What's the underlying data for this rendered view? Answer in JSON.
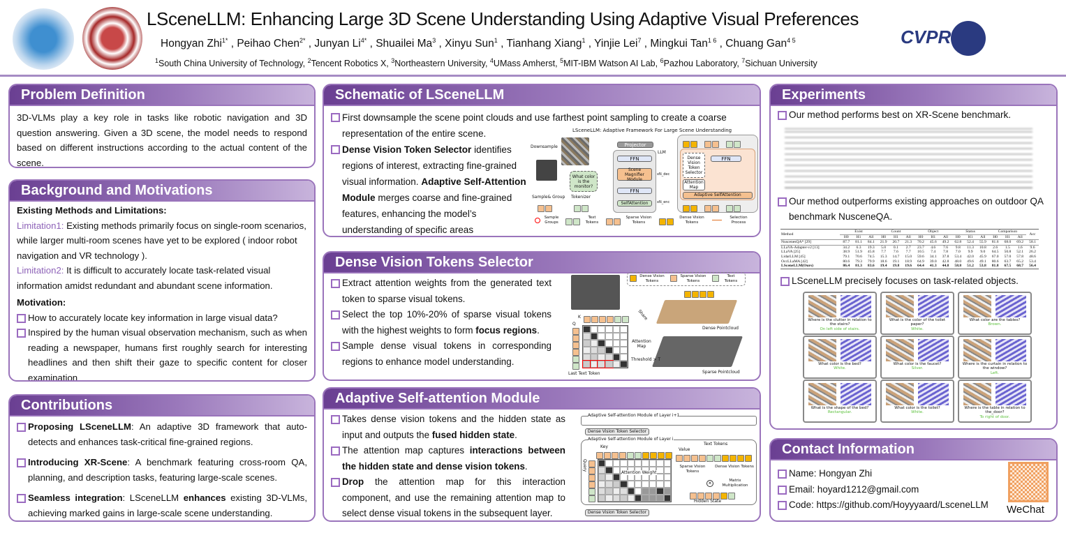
{
  "header": {
    "title": "LSceneLLM: Enhancing Large 3D Scene Understanding Using Adaptive Visual Preferences",
    "authors": [
      [
        "Hongyan Zhi",
        "1*"
      ],
      [
        "Peihao Chen",
        "2*"
      ],
      [
        "Junyan Li",
        "4*"
      ],
      [
        "Shuailei Ma",
        "3"
      ],
      [
        "Xinyu Sun",
        "1"
      ],
      [
        "Tianhang Xiang",
        "1"
      ],
      [
        "Yinjie Lei",
        "7"
      ],
      [
        "Mingkui Tan",
        "1 6"
      ],
      [
        "Chuang Gan",
        "4 5"
      ]
    ],
    "affiliations": [
      [
        "1",
        "South China University of Technology"
      ],
      [
        "2",
        "Tencent Robotics X"
      ],
      [
        "3",
        "Northeastern University"
      ],
      [
        "4",
        "UMass Amherst"
      ],
      [
        "5",
        "MIT-IBM Watson AI Lab"
      ],
      [
        "6",
        "Pazhou Laboratory"
      ],
      [
        "7",
        "Sichuan University"
      ]
    ],
    "conference_logo": "CVPR Nashville June 11-15, 2025",
    "colors": {
      "accent": "#9a74bb",
      "header_dark": "#6a3f92",
      "limitation": "#8e63b8",
      "answer": "#5cc13c"
    }
  },
  "problem": {
    "title": "Problem Definition",
    "text": "3D-VLMs play a key role in tasks like robotic navigation and 3D question answering. Given a 3D scene, the model needs to respond based on different instructions according to the actual content of the scene."
  },
  "background": {
    "title": "Background and Motivations",
    "subtitle": "Existing Methods and Limitations:",
    "lim1_label": "Limitation1:",
    "lim1": " Existing methods primarily focus on single-room scenarios, while larger multi-room scenes have yet to be explored ( indoor robot navigation and VR technology ).",
    "lim2_label": "Limitation2:",
    "lim2": " It is difficult to accurately locate task-related visual information amidst redundant and abundant scene information.",
    "motivation_label": "Motivation:",
    "bullets": [
      "How to accurately locate key information in large  visual data?",
      "Inspired by the human visual observation mechanism, such as when reading a newspaper, humans first roughly search for interesting headlines and then shift their gaze to specific content for closer examination"
    ]
  },
  "contributions": {
    "title": "Contributions",
    "bullets": [
      [
        [
          "Proposing LSceneLLM",
          1
        ],
        [
          ": An adaptive 3D framework that auto-detects and enhances task-critical fine-grained regions.",
          0
        ]
      ],
      [
        [
          "Introducing XR-Scene",
          1
        ],
        [
          ": A benchmark featuring cross-room QA, planning, and description tasks, featuring large-scale scenes.",
          0
        ]
      ],
      [
        [
          "Seamless integration",
          1
        ],
        [
          ": LSceneLLM ",
          0
        ],
        [
          "enhances",
          1
        ],
        [
          " existing 3D-VLMs, achieving marked gains in large-scale scene understanding.",
          0
        ]
      ]
    ]
  },
  "schematic": {
    "title": "Schematic of LSceneLLM",
    "bullets": [
      [
        [
          "First downsample the scene point clouds and use farthest point sampling to create a coarse representation of the entire scene.",
          0
        ]
      ],
      [
        [
          " Dense Vision Token Selector",
          1
        ],
        [
          " identifies regions of interest, extracting fine-grained visual information.  ",
          0
        ],
        [
          "Adaptive Self-Attention Module",
          1
        ],
        [
          " merges coarse and fine-grained features, enhancing the model’s  understanding of specific areas",
          0
        ]
      ]
    ],
    "figure": {
      "title": "LSceneLLM: Adaptive Framework For Large Scene Understanding",
      "downsample": "Downsample",
      "sample_group": "Sample& Group",
      "tokenizer": "Tokenizer",
      "question": "What color is the monitor?",
      "projector": "Projector",
      "llm": "LLM",
      "ffn": "FFN",
      "scene_magnifier": "Scene Magnifier Module",
      "self_attention": "SelfAttention",
      "nx_dec": "xN_dec",
      "nx_enc": "xN_enc",
      "dvts": "Dense Vision Token Selector",
      "attention_map": "Attention Map",
      "adaptive_sa": "Adaptive SelfAttention",
      "legend": [
        "Sample Groups",
        "Text Tokens",
        "Sparse Vision Tokens",
        "Dense Vision Tokens",
        "Selection Process"
      ]
    }
  },
  "dense": {
    "title": "Dense Vision Tokens Selector",
    "bullets": [
      [
        [
          "Extract attention weights from the generated text token to sparse visual tokens.",
          0
        ]
      ],
      [
        [
          "Select the top 10%-20% of sparse visual tokens with the highest weights to form ",
          0
        ],
        [
          "focus regions",
          1
        ],
        [
          ".",
          0
        ]
      ],
      [
        [
          "Sample dense visual tokens in corresponding regions to enhance model understanding.",
          0
        ]
      ]
    ],
    "figure": {
      "legend": [
        "Dense Vision Tokens",
        "Sparse Vision Tokens",
        "Text Tokens"
      ],
      "k": "K",
      "q": "Q",
      "attention_map": "Attention Map",
      "threshold": "Threshold > T",
      "last_text_token": "Last Text Token",
      "share": "Share",
      "dense_pc": "Dense Pointcloud",
      "sparse_pc": "Sparse Pointcloud"
    }
  },
  "adaptive": {
    "title": "Adaptive Self-attention Module",
    "bullets": [
      [
        [
          "Takes dense vision tokens and the hidden state as input and outputs the ",
          0
        ],
        [
          "fused hidden state",
          1
        ],
        [
          ".",
          0
        ]
      ],
      [
        [
          "The attention map captures ",
          0
        ],
        [
          "interactions between the hidden state and dense vision tokens",
          1
        ],
        [
          ".",
          0
        ]
      ],
      [
        [
          "Drop",
          1
        ],
        [
          " the attention map for this interaction component, and use the remaining attention map to select dense visual tokens in the subsequent layer.",
          0
        ]
      ]
    ],
    "figure": {
      "outer": "Adaptive Self-attention Module of Layer i+1",
      "inner": "Adaptive Self-attention Module of Layer i",
      "dvts": "Dense Vision Token Selector",
      "key": "Key",
      "query": "Query",
      "value": "Value",
      "text_tokens": "Text Tokens",
      "attention_weight": "Attention Weight",
      "sparse_vt": "Sparse Vision Tokens",
      "dense_vt": "Dense Vision Tokens",
      "matmul": "Matrix Multiplication",
      "hidden_state": "Hidden State"
    }
  },
  "experiments": {
    "title": "Experiments",
    "b1": "Our method performs best on XR-Scene benchmark.",
    "b2": "Our method outperforms existing approaches on outdoor QA benchmark NusceneQA.",
    "b3": "LSceneLLM precisely focuses on task-related objects.",
    "table2": {
      "groups": [
        "Exist",
        "Count",
        "Object",
        "Status",
        "Comparison"
      ],
      "sub": [
        "H0",
        "H1",
        "All"
      ],
      "method_header": "Method",
      "acc_header": "Acc",
      "rows": [
        [
          "NuscenesQA* [29]",
          "87.7",
          "81.1",
          "84.1",
          "21.9",
          "20.7",
          "21.3",
          "70.2",
          "45.6",
          "49.2",
          "62.8",
          "52.4",
          "55.9",
          "81.6",
          "68.0",
          "69.2",
          "58.1"
        ],
        [
          "LLaVA-Adapter-v2 [13]",
          "34.2",
          "6.3",
          "19.3",
          "5.0",
          "0.1",
          "2.7",
          "23.7",
          "4.6",
          "7.6",
          "9.8",
          "11.3",
          "10.8",
          "2.6",
          "1.5",
          "1.6",
          "9.6"
        ],
        [
          "LLaVA [25]",
          "38.9",
          "51.9",
          "45.8",
          "7.7",
          "7.6",
          "7.7",
          "10.5",
          "7.4",
          "7.8",
          "7.0",
          "9.9",
          "9.0",
          "64.5",
          "50.8",
          "52.1",
          "26.2"
        ],
        [
          "LidarLLM [45]",
          "79.1",
          "70.6",
          "74.5",
          "15.3",
          "14.7",
          "15.0",
          "59.6",
          "34.1",
          "37.8",
          "53.4",
          "42.0",
          "45.9",
          "67.0",
          "57.0",
          "57.8",
          "48.6"
        ],
        [
          "OccLLaMA [42]",
          "80.6",
          "79.3",
          "79.9",
          "18.6",
          "19.1",
          "18.9",
          "64.9",
          "39.0",
          "42.8",
          "48.0",
          "49.6",
          "49.1",
          "80.6",
          "63.7",
          "65.2",
          "53.4"
        ],
        [
          "LSceneLLM(Ours)",
          "86.4",
          "81.3",
          "83.6",
          "19.4",
          "19.8",
          "19.6",
          "64.4",
          "41.3",
          "44.8",
          "58.8",
          "51.2",
          "53.8",
          "81.8",
          "67.5",
          "68.7",
          "56.4"
        ]
      ]
    },
    "examples": [
      {
        "q": "Where is the clutter in relation to the stairs?",
        "a": "On left side of stairs."
      },
      {
        "q": "What is the color of the toilet paper?",
        "a": "White."
      },
      {
        "q": "What color are the tables?",
        "a": "Brown."
      },
      {
        "q": "What color is the bed?",
        "a": "White."
      },
      {
        "q": "What color is the faucet?",
        "a": "Silver."
      },
      {
        "q": "Where is the curtain in relation to the window?",
        "a": "Left."
      },
      {
        "q": "What is the shape of the bed?",
        "a": "Rectangular."
      },
      {
        "q": "What color is the toilet?",
        "a": "White."
      },
      {
        "q": "Where is the table in relation to the_door?",
        "a": "To right of door."
      }
    ]
  },
  "contact": {
    "title": "Contact Information",
    "name": "Name: Hongyan Zhi",
    "email": "Email: hoyard1212@gmail.com",
    "code": "Code: https://github.com/Hoyyyaard/LsceneLLM",
    "qr_label": "WeChat"
  }
}
